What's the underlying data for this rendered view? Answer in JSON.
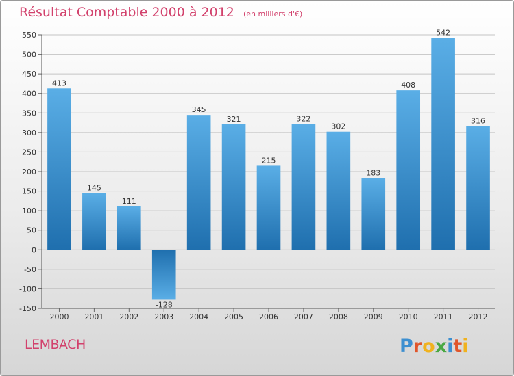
{
  "header": {
    "title": "Résultat Comptable 2000 à 2012",
    "unit": "(en milliers d'€)"
  },
  "footer": {
    "commune": "LEMBACH",
    "logo_text": "Proxiti"
  },
  "colors": {
    "title": "#d2416c",
    "bar_light": "#5aaee6",
    "bar_dark": "#1f6fae"
  },
  "chart_data": {
    "type": "bar",
    "title": "Résultat Comptable 2000 à 2012",
    "subtitle": "(en milliers d'€)",
    "categories": [
      "2000",
      "2001",
      "2002",
      "2003",
      "2004",
      "2005",
      "2006",
      "2007",
      "2008",
      "2009",
      "2010",
      "2011",
      "2012"
    ],
    "values": [
      413,
      145,
      111,
      -128,
      345,
      321,
      215,
      322,
      302,
      183,
      408,
      542,
      316
    ],
    "ylim": [
      -150,
      550
    ],
    "yticks": [
      -150,
      -100,
      -50,
      0,
      50,
      100,
      150,
      200,
      250,
      300,
      350,
      400,
      450,
      500,
      550
    ],
    "grid": true,
    "legend": "none"
  }
}
